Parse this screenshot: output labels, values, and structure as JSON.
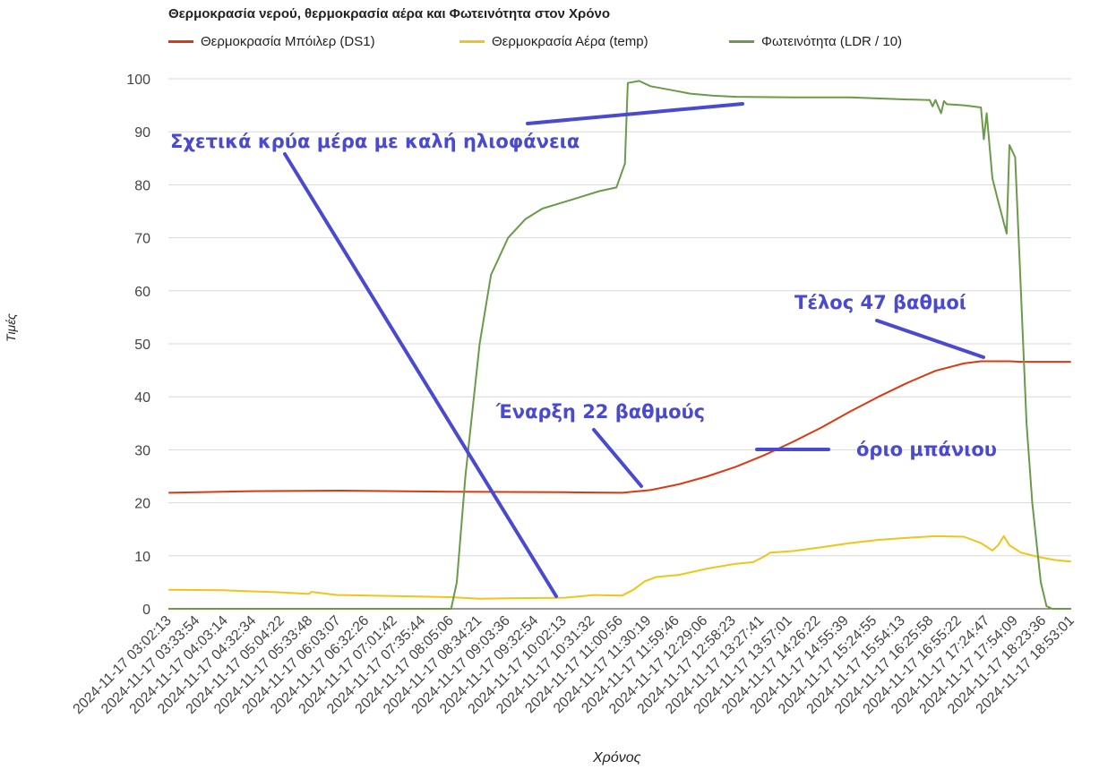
{
  "chart_data": {
    "type": "line",
    "title": "Θερμοκρασία νερού, θερμοκρασία αέρα και Φωτεινότητα στον Χρόνο",
    "xlabel": "Χρόνος",
    "ylabel": "Τιμές",
    "ylim": [
      0,
      100
    ],
    "yticks": [
      0,
      10,
      20,
      30,
      40,
      50,
      60,
      70,
      80,
      90,
      100
    ],
    "grid": true,
    "legend_position": "top-left",
    "xtick_labels": [
      "2024-11-17 03:02:13",
      "2024-11-17 03:33:54",
      "2024-11-17 04:03:14",
      "2024-11-17 04:32:34",
      "2024-11-17 05:04:22",
      "2024-11-17 05:33:48",
      "2024-11-17 06:03:07",
      "2024-11-17 06:32:26",
      "2024-11-17 07:01:42",
      "2024-11-17 07:35:44",
      "2024-11-17 08:05:06",
      "2024-11-17 08:34:21",
      "2024-11-17 09:03:36",
      "2024-11-17 09:32:54",
      "2024-11-17 10:02:13",
      "2024-11-17 10:31:32",
      "2024-11-17 11:00:56",
      "2024-11-17 11:30:19",
      "2024-11-17 11:59:46",
      "2024-11-17 12:29:06",
      "2024-11-17 12:58:23",
      "2024-11-17 13:27:41",
      "2024-11-17 13:57:01",
      "2024-11-17 14:26:22",
      "2024-11-17 14:55:39",
      "2024-11-17 15:24:55",
      "2024-11-17 15:54:13",
      "2024-11-17 16:25:58",
      "2024-11-17 16:55:22",
      "2024-11-17 17:24:47",
      "2024-11-17 17:54:09",
      "2024-11-17 18:23:36",
      "2024-11-17 18:53:01"
    ],
    "xrange_hours": [
      3.037,
      18.884
    ],
    "series": [
      {
        "name": "Θερμοκρασία Μπόιλερ (DS1)",
        "color": "#dc3912",
        "x": [
          3.04,
          4.5,
          6.0,
          8.0,
          10.0,
          11.0,
          11.5,
          12.0,
          12.5,
          13.0,
          13.5,
          14.0,
          14.5,
          15.0,
          15.5,
          16.0,
          16.5,
          17.0,
          17.3,
          17.5,
          17.8,
          18.0,
          18.5,
          18.88
        ],
        "values": [
          21.9,
          22.2,
          22.3,
          22.1,
          22.0,
          21.9,
          22.4,
          23.5,
          25.0,
          26.8,
          29.0,
          31.5,
          34.2,
          37.2,
          40.0,
          42.6,
          44.9,
          46.3,
          46.7,
          46.7,
          46.7,
          46.6,
          46.6,
          46.6
        ]
      },
      {
        "name": "Θερμοκρασία Αέρα (temp)",
        "color": "#f0c419",
        "x": [
          3.04,
          4.0,
          5.0,
          5.5,
          5.55,
          6.0,
          7.0,
          8.0,
          8.5,
          9.0,
          10.0,
          10.5,
          11.0,
          11.2,
          11.4,
          11.6,
          12.0,
          12.5,
          13.0,
          13.3,
          13.5,
          13.6,
          14.0,
          14.5,
          15.0,
          15.5,
          16.0,
          16.5,
          17.0,
          17.3,
          17.5,
          17.6,
          17.7,
          17.8,
          18.0,
          18.3,
          18.6,
          18.88
        ],
        "values": [
          3.6,
          3.5,
          3.1,
          2.8,
          3.2,
          2.6,
          2.4,
          2.2,
          1.9,
          2.0,
          2.1,
          2.6,
          2.5,
          3.6,
          5.2,
          6.0,
          6.4,
          7.6,
          8.5,
          8.8,
          9.9,
          10.6,
          10.9,
          11.6,
          12.4,
          13.0,
          13.4,
          13.7,
          13.6,
          12.4,
          11.0,
          12.0,
          13.7,
          12.0,
          10.6,
          9.8,
          9.2,
          8.9
        ]
      },
      {
        "name": "Φωτεινότητα (LDR / 10)",
        "color": "#6a9a4a",
        "x": [
          3.04,
          8.0,
          8.1,
          8.25,
          8.5,
          8.7,
          9.0,
          9.3,
          9.6,
          10.0,
          10.3,
          10.6,
          10.9,
          11.05,
          11.1,
          11.3,
          11.5,
          11.8,
          12.2,
          12.6,
          13.0,
          14.0,
          15.0,
          16.0,
          16.4,
          16.45,
          16.5,
          16.6,
          16.65,
          16.7,
          17.0,
          17.3,
          17.35,
          17.4,
          17.5,
          17.6,
          17.75,
          17.8,
          17.9,
          18.0,
          18.1,
          18.2,
          18.35,
          18.45,
          18.55,
          18.88
        ],
        "values": [
          0,
          0,
          5,
          25,
          50,
          63,
          70,
          73.5,
          75.5,
          76.8,
          77.8,
          78.8,
          79.5,
          84,
          99.2,
          99.6,
          98.6,
          98.0,
          97.2,
          96.8,
          96.6,
          96.5,
          96.5,
          96.1,
          96.0,
          94.8,
          96.0,
          93.5,
          95.8,
          95.2,
          95.0,
          94.6,
          88.6,
          93.5,
          81.2,
          77.0,
          70.8,
          87.5,
          85.2,
          60.0,
          35.0,
          20.0,
          5.0,
          0.5,
          0,
          0
        ]
      }
    ],
    "annotations": [
      {
        "text": "Σχετικά κρύα μέρα με καλή ηλιοφάνεια",
        "x_hours": 10.9,
        "y_value": 90.5
      },
      {
        "text": "Έναρξη 22 βαθμούς",
        "x_hours": 11.6,
        "y_value": 36.0
      },
      {
        "text": "όριο μπάνιου",
        "x_hours": 14.9,
        "y_value": 29.6
      },
      {
        "text": "Τέλος 47 βαθμοί",
        "x_hours": 16.4,
        "y_value": 56.7
      }
    ]
  }
}
